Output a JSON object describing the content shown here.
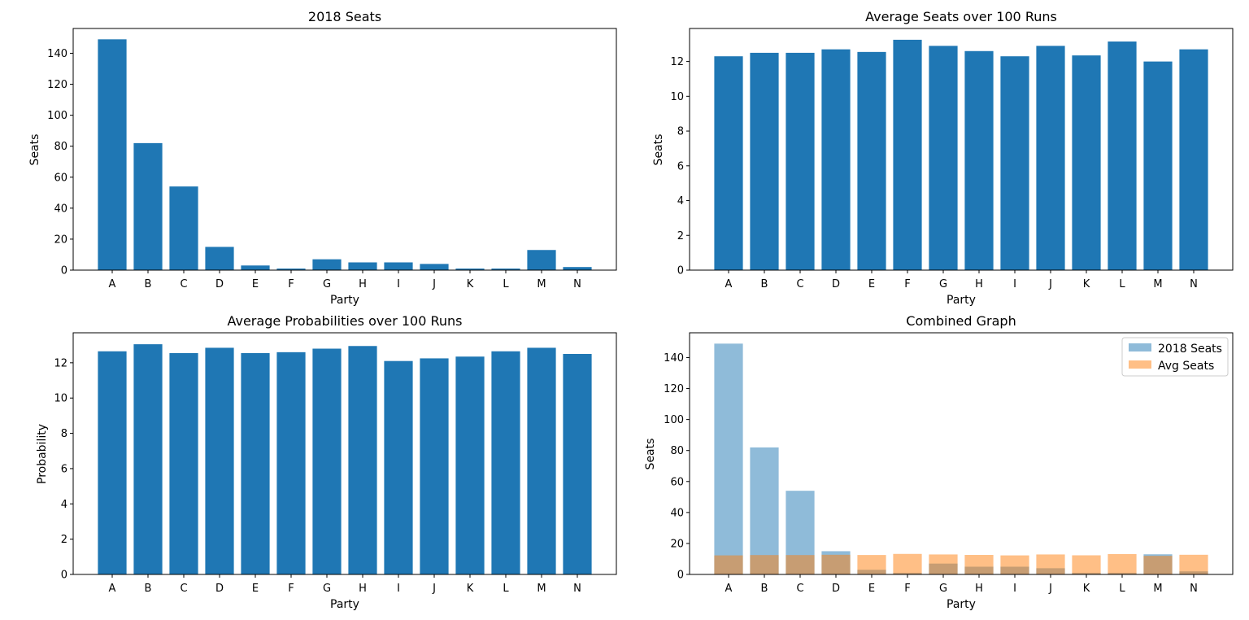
{
  "colors": {
    "primary": "#1f77b4",
    "orange": "#ff7f0e"
  },
  "chart_data": [
    {
      "type": "bar",
      "title": "2018 Seats",
      "xlabel": "Party",
      "ylabel": "Seats",
      "categories": [
        "A",
        "B",
        "C",
        "D",
        "E",
        "F",
        "G",
        "H",
        "I",
        "J",
        "K",
        "L",
        "M",
        "N"
      ],
      "values": [
        149,
        82,
        54,
        15,
        3,
        1,
        7,
        5,
        5,
        4,
        1,
        1,
        13,
        2
      ],
      "ylim": [
        0,
        156
      ],
      "yticks": [
        "0",
        "20",
        "40",
        "60",
        "80",
        "100",
        "120",
        "140"
      ]
    },
    {
      "type": "bar",
      "title": "Average Seats over 100 Runs",
      "xlabel": "Party",
      "ylabel": "Seats",
      "categories": [
        "A",
        "B",
        "C",
        "D",
        "E",
        "F",
        "G",
        "H",
        "I",
        "J",
        "K",
        "L",
        "M",
        "N"
      ],
      "values": [
        12.3,
        12.5,
        12.5,
        12.7,
        12.55,
        13.25,
        12.9,
        12.6,
        12.3,
        12.9,
        12.35,
        13.15,
        12.0,
        12.7
      ],
      "ylim": [
        0,
        13.9
      ],
      "yticks": [
        "0",
        "2",
        "4",
        "6",
        "8",
        "10",
        "12"
      ]
    },
    {
      "type": "bar",
      "title": "Average Probabilities over 100 Runs",
      "xlabel": "Party",
      "ylabel": "Probability",
      "categories": [
        "A",
        "B",
        "C",
        "D",
        "E",
        "F",
        "G",
        "H",
        "I",
        "J",
        "K",
        "L",
        "M",
        "N"
      ],
      "values": [
        12.65,
        13.05,
        12.55,
        12.85,
        12.55,
        12.6,
        12.8,
        12.95,
        12.1,
        12.25,
        12.35,
        12.65,
        12.85,
        12.5
      ],
      "ylim": [
        0,
        13.7
      ],
      "yticks": [
        "0",
        "2",
        "4",
        "6",
        "8",
        "10",
        "12"
      ]
    },
    {
      "type": "bar",
      "title": "Combined Graph",
      "xlabel": "Party",
      "ylabel": "Seats",
      "categories": [
        "A",
        "B",
        "C",
        "D",
        "E",
        "F",
        "G",
        "H",
        "I",
        "J",
        "K",
        "L",
        "M",
        "N"
      ],
      "series": [
        {
          "name": "2018 Seats",
          "values": [
            149,
            82,
            54,
            15,
            3,
            1,
            7,
            5,
            5,
            4,
            1,
            1,
            13,
            2
          ]
        },
        {
          "name": "Avg Seats",
          "values": [
            12.3,
            12.5,
            12.5,
            12.7,
            12.55,
            13.25,
            12.9,
            12.6,
            12.3,
            12.9,
            12.35,
            13.15,
            12.0,
            12.7
          ]
        }
      ],
      "legend": "top-right",
      "ylim": [
        0,
        156
      ],
      "yticks": [
        "0",
        "20",
        "40",
        "60",
        "80",
        "100",
        "120",
        "140"
      ]
    }
  ]
}
